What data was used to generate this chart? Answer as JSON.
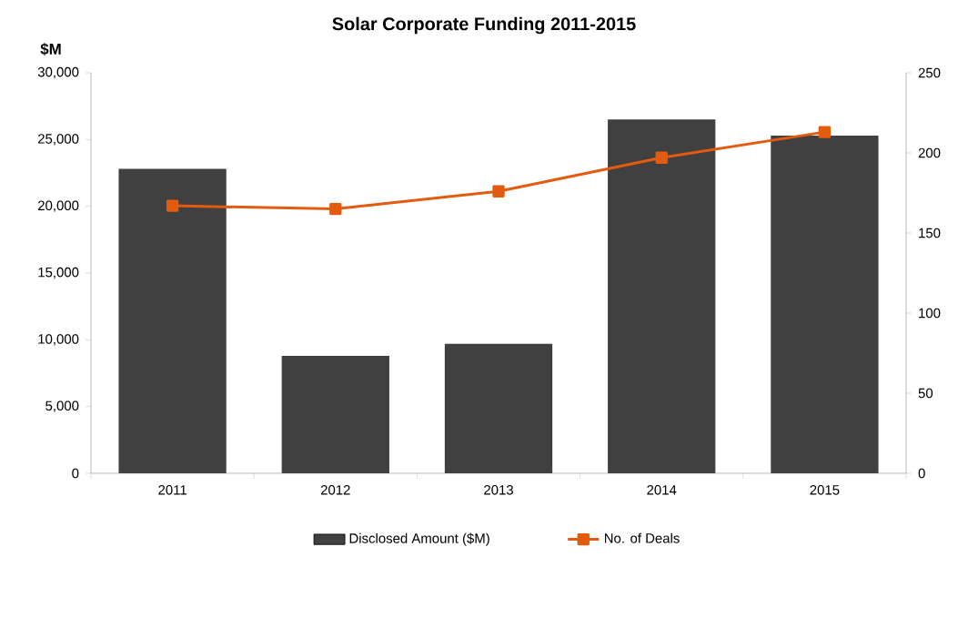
{
  "chart_data": {
    "type": "bar",
    "title": "Solar Corporate Funding 2011-2015",
    "ylabel": "$M",
    "categories": [
      "2011",
      "2012",
      "2013",
      "2014",
      "2015"
    ],
    "series": [
      {
        "name": "Disclosed Amount ($M)",
        "color": "#404040",
        "values": [
          22800,
          8800,
          9700,
          26500,
          25300
        ]
      },
      {
        "name": "No. of Deals",
        "type": "line",
        "axis": "y2",
        "color": "#e35b0f",
        "marker": "square",
        "values": [
          167,
          165,
          176,
          197,
          213
        ]
      }
    ],
    "ylim": [
      0,
      30000
    ],
    "yticks": [
      0,
      {
        "value": 5000,
        "label": "5,000"
      },
      {
        "value": 10000,
        "label": "10,000"
      },
      {
        "value": 15000,
        "label": "15,000"
      },
      {
        "value": 20000,
        "label": "20,000"
      },
      {
        "value": 25000,
        "label": "25,000"
      },
      {
        "value": 30000,
        "label": "30,000"
      }
    ],
    "y2lim": [
      0,
      250
    ],
    "y2ticks": [
      0,
      50,
      100,
      150,
      200,
      250
    ],
    "legend": "bottom",
    "grid": false
  }
}
